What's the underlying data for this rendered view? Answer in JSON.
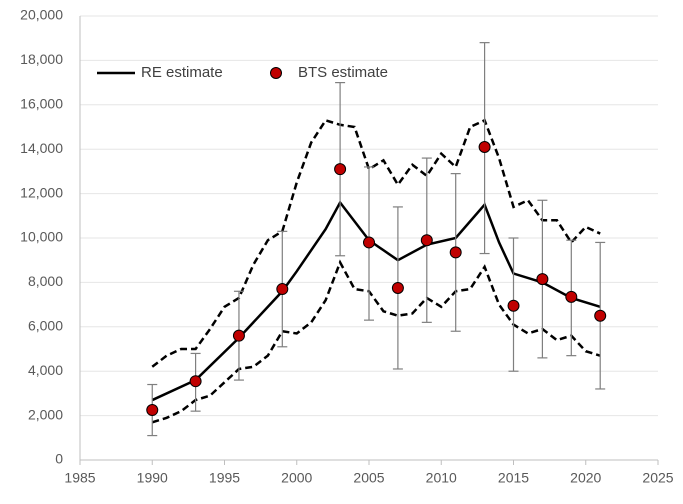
{
  "chart_data": {
    "type": "line",
    "xlim": [
      1985,
      2025
    ],
    "xticks": [
      1985,
      1990,
      1995,
      2000,
      2005,
      2010,
      2015,
      2020,
      2025
    ],
    "ylim": [
      0,
      20000
    ],
    "yticks": [
      0,
      {
        "value": 2000,
        "label": "2,000"
      },
      {
        "value": 4000,
        "label": "4,000"
      },
      {
        "value": 6000,
        "label": "6,000"
      },
      {
        "value": 8000,
        "label": "8,000"
      },
      {
        "value": 10000,
        "label": "10,000"
      },
      {
        "value": 12000,
        "label": "12,000"
      },
      {
        "value": 14000,
        "label": "14,000"
      },
      {
        "value": 16000,
        "label": "16,000"
      },
      {
        "value": 18000,
        "label": "18,000"
      },
      {
        "value": 20000,
        "label": "20,000"
      }
    ],
    "grid": true,
    "legend": "top-left",
    "series": [
      {
        "name": "RE estimate",
        "color": "#000000",
        "mode": "line",
        "x": [
          1990,
          1993,
          1996,
          1999,
          2000,
          2002,
          2003,
          2005,
          2007,
          2009,
          2011,
          2013,
          2014,
          2015,
          2017,
          2019,
          2021
        ],
        "values": [
          2700,
          3600,
          5500,
          7600,
          8500,
          10400,
          11600,
          9900,
          9000,
          9700,
          10000,
          11500,
          9800,
          8400,
          8000,
          7300,
          6900
        ]
      },
      {
        "name": "BTS estimate",
        "color": "#c00000",
        "mode": "markers",
        "x": [
          1990,
          1993,
          1996,
          1999,
          2003,
          2005,
          2007,
          2009,
          2011,
          2013,
          2015,
          2017,
          2019,
          2021
        ],
        "values": [
          2250,
          3550,
          5600,
          7700,
          13100,
          9800,
          7750,
          9900,
          9350,
          14100,
          6950,
          8150,
          7350,
          6500
        ],
        "lower": [
          1100,
          2200,
          3600,
          5100,
          9200,
          6300,
          4100,
          6200,
          5800,
          9300,
          4000,
          4600,
          4700,
          3200
        ],
        "upper": [
          3400,
          4800,
          7600,
          10300,
          17000,
          13200,
          11400,
          13600,
          12900,
          18800,
          10000,
          11700,
          9900,
          9800
        ]
      }
    ],
    "bounds": {
      "color": "#000000",
      "dashed": true,
      "x": [
        1990,
        1991,
        1992,
        1993,
        1994,
        1995,
        1996,
        1997,
        1998,
        1999,
        2000,
        2001,
        2002,
        2003,
        2004,
        2005,
        2006,
        2007,
        2008,
        2009,
        2010,
        2011,
        2012,
        2013,
        2014,
        2015,
        2016,
        2017,
        2018,
        2019,
        2020,
        2021
      ],
      "upper": [
        4200,
        4700,
        5000,
        5000,
        5900,
        6900,
        7300,
        8800,
        9900,
        10300,
        12500,
        14300,
        15300,
        15100,
        15000,
        13100,
        13500,
        12400,
        13300,
        12800,
        13800,
        13200,
        15000,
        15300,
        13600,
        11400,
        11700,
        10800,
        10800,
        9800,
        10500,
        10200
      ],
      "lower": [
        1700,
        1900,
        2200,
        2700,
        2900,
        3500,
        4100,
        4200,
        4700,
        5800,
        5700,
        6200,
        7200,
        8900,
        7700,
        7600,
        6700,
        6500,
        6600,
        7300,
        6900,
        7600,
        7700,
        8700,
        7000,
        6100,
        5700,
        5900,
        5400,
        5600,
        4900,
        4700
      ]
    }
  }
}
